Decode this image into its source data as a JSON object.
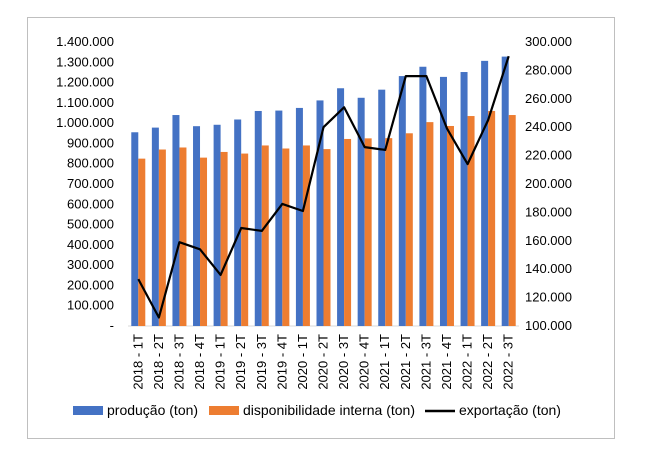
{
  "chart_data": {
    "type": "bar",
    "title": "",
    "xlabel": "",
    "ylabel": "",
    "categories": [
      "2018 - 1T",
      "2018 - 2T",
      "2018 - 3T",
      "2018 - 4T",
      "2019 - 1T",
      "2019 - 2T",
      "2019 - 3T",
      "2019 - 4T",
      "2020 - 1T",
      "2020 - 2T",
      "2020 - 3T",
      "2020 - 4T",
      "2021 - 1T",
      "2021 - 2T",
      "2021 - 3T",
      "2021 - 4T",
      "2022 - 1T",
      "2022 - 2T",
      "2022 - 3T"
    ],
    "y_left": {
      "min": 0,
      "max": 1400000,
      "step": 100000,
      "tick_labels": [
        "-",
        "100.000",
        "200.000",
        "300.000",
        "400.000",
        "500.000",
        "600.000",
        "700.000",
        "800.000",
        "900.000",
        "1.000.000",
        "1.100.000",
        "1.200.000",
        "1.300.000",
        "1.400.000"
      ]
    },
    "y_right": {
      "min": 100000,
      "max": 300000,
      "step": 20000,
      "tick_labels": [
        "100.000",
        "120.000",
        "140.000",
        "160.000",
        "180.000",
        "200.000",
        "220.000",
        "240.000",
        "260.000",
        "280.000",
        "300.000"
      ]
    },
    "series": [
      {
        "name": "produção (ton)",
        "kind": "bar",
        "axis": "left",
        "color": "#4472C4",
        "values": [
          955000,
          978000,
          1040000,
          985000,
          992000,
          1018000,
          1060000,
          1062000,
          1075000,
          1112000,
          1172000,
          1125000,
          1165000,
          1232000,
          1278000,
          1228000,
          1252000,
          1307000,
          1328000
        ]
      },
      {
        "name": "disponibilidade interna (ton)",
        "kind": "bar",
        "axis": "left",
        "color": "#ED7D31",
        "values": [
          825000,
          870000,
          880000,
          830000,
          858000,
          850000,
          890000,
          875000,
          890000,
          872000,
          922000,
          925000,
          926000,
          950000,
          1005000,
          986000,
          1035000,
          1060000,
          1040000
        ]
      },
      {
        "name": "exportação (ton)",
        "kind": "line",
        "axis": "right",
        "color": "#000000",
        "values": [
          133000,
          106000,
          159000,
          154000,
          136000,
          169000,
          167000,
          186000,
          181000,
          240000,
          254000,
          226000,
          224000,
          276000,
          276000,
          239000,
          214000,
          245000,
          290000
        ]
      }
    ],
    "legend_position": "bottom",
    "grid": false
  }
}
